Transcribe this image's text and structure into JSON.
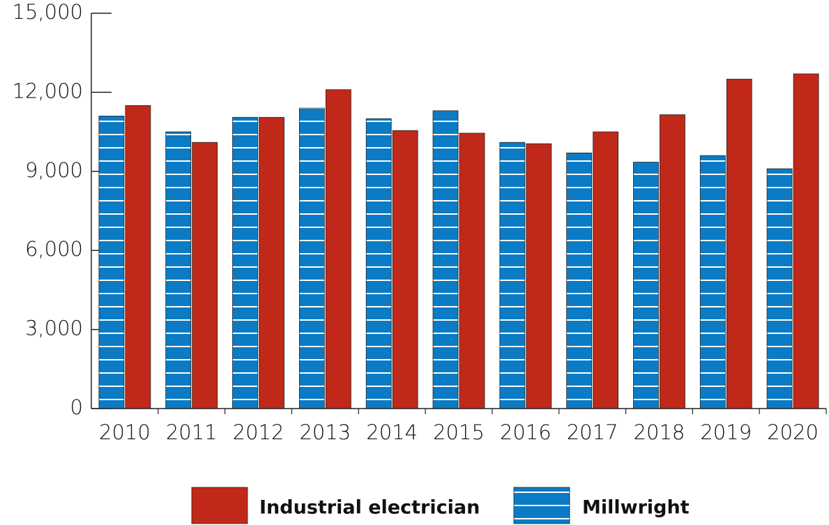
{
  "chart_data": {
    "type": "bar",
    "categories": [
      "2010",
      "2011",
      "2012",
      "2013",
      "2014",
      "2015",
      "2016",
      "2017",
      "2018",
      "2019",
      "2020"
    ],
    "series": [
      {
        "name": "Millwright",
        "color": "#0a7bc4",
        "hatch": "horizontal",
        "values": [
          11100,
          10500,
          11050,
          11400,
          11000,
          11300,
          10100,
          9700,
          9350,
          9600,
          9100
        ]
      },
      {
        "name": "Industrial electrician",
        "color": "#c0291a",
        "values": [
          11500,
          10100,
          11050,
          12100,
          10550,
          10450,
          10050,
          10500,
          11150,
          12500,
          12700
        ]
      }
    ],
    "ylim": [
      0,
      15000
    ],
    "yticks": [
      0,
      {
        "value": 3000,
        "label": "3,000"
      },
      {
        "value": 6000,
        "label": "6,000"
      },
      {
        "value": 9000,
        "label": "9,000"
      },
      {
        "value": 12000,
        "label": "12,000"
      },
      {
        "value": 15000,
        "label": "15,000"
      }
    ],
    "legend": "bottom"
  }
}
